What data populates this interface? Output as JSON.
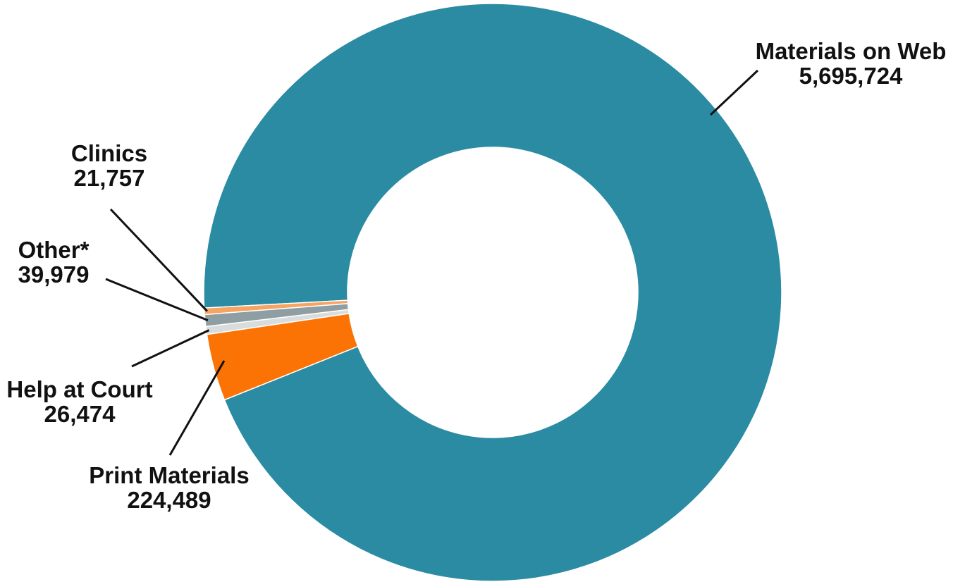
{
  "chart_data": {
    "type": "pie",
    "donut": true,
    "title": "",
    "categories": [
      "Materials on Web",
      "Clinics",
      "Other*",
      "Help at Court",
      "Print Materials"
    ],
    "values": [
      5695724,
      21757,
      39979,
      26474,
      224489
    ],
    "value_labels": [
      "5,695,724",
      "21,757",
      "39,979",
      "26,474",
      "224,489"
    ],
    "colors": [
      "#2a8ba3",
      "#f5a462",
      "#8e9ea3",
      "#d9dcdc",
      "#fb7305"
    ],
    "legend": "none"
  }
}
